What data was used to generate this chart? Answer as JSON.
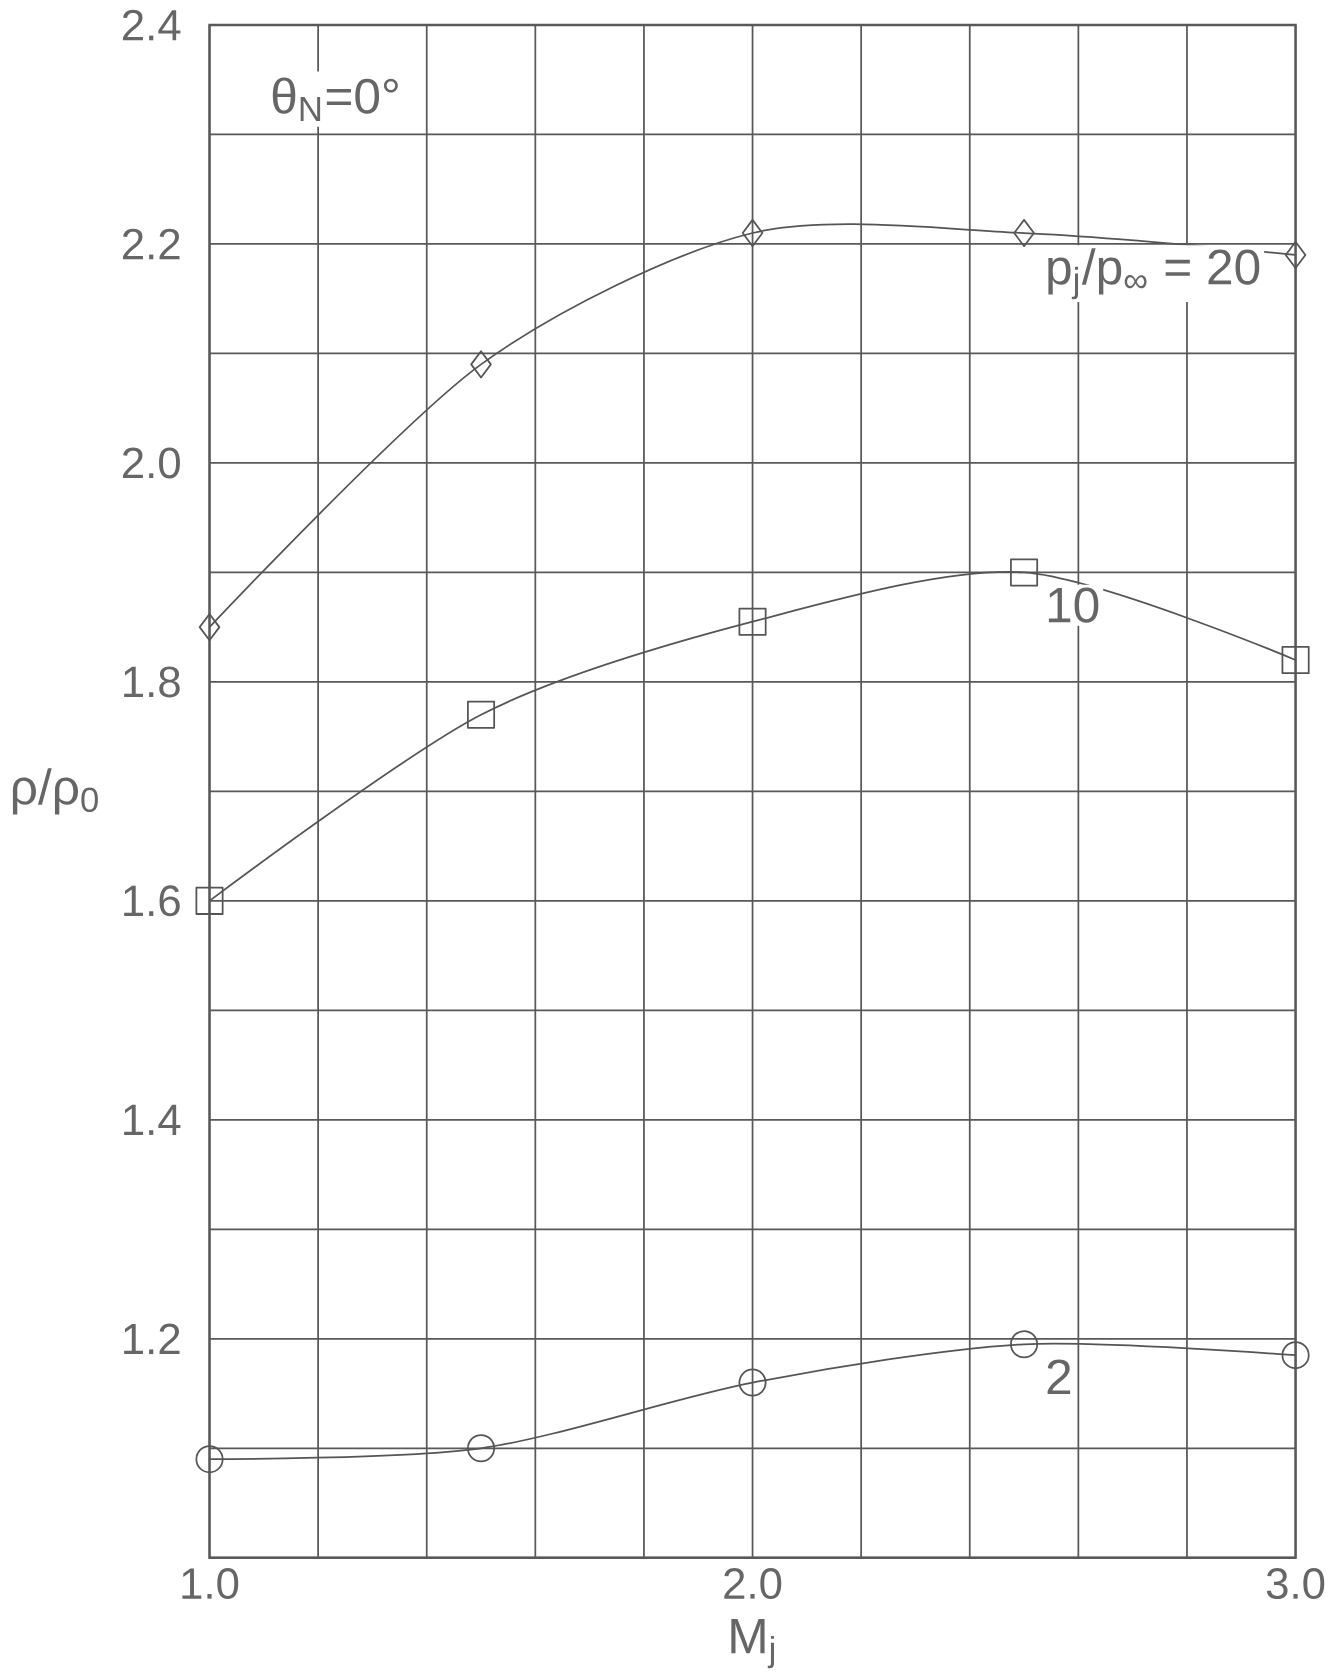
{
  "chart_data": {
    "type": "line",
    "xlabel": "M$_{j}$",
    "ylabel": "ρ/ρ$_{0}$",
    "annotations": [
      "θ$_{N}$=0°"
    ],
    "x": [
      1.0,
      1.5,
      2.0,
      2.5,
      3.0
    ],
    "series": [
      {
        "name": "p$_{j}$/p$_{∞}$ = 20",
        "color": "#555555",
        "marker": "diamond",
        "values": [
          1.85,
          2.09,
          2.21,
          2.21,
          2.19
        ]
      },
      {
        "name": "10",
        "color": "#555555",
        "marker": "square",
        "values": [
          1.6,
          1.77,
          1.855,
          1.9,
          1.82
        ]
      },
      {
        "name": "2",
        "color": "#555555",
        "marker": "circle",
        "values": [
          1.09,
          1.1,
          1.16,
          1.195,
          1.185
        ]
      }
    ],
    "xlim": [
      1.0,
      3.0
    ],
    "ylim": [
      1.0,
      2.4
    ],
    "xticks": [
      {
        "value": 1.0,
        "label": "1.0"
      },
      {
        "value": 1.2,
        "label": null
      },
      {
        "value": 1.4,
        "label": null
      },
      {
        "value": 1.6,
        "label": null
      },
      {
        "value": 1.8,
        "label": null
      },
      {
        "value": 2.0,
        "label": "2.0"
      },
      {
        "value": 2.2,
        "label": null
      },
      {
        "value": 2.4,
        "label": null
      },
      {
        "value": 2.6,
        "label": null
      },
      {
        "value": 2.8,
        "label": null
      },
      {
        "value": 3.0,
        "label": "3.0"
      }
    ],
    "yticks": [
      {
        "value": 1.0,
        "label": null
      },
      {
        "value": 1.1,
        "label": null
      },
      1.2,
      {
        "value": 1.3,
        "label": null
      },
      1.4,
      {
        "value": 1.5,
        "label": null
      },
      1.6,
      {
        "value": 1.7,
        "label": null
      },
      1.8,
      {
        "value": 1.9,
        "label": null
      },
      {
        "value": 2.0,
        "label": "2.0"
      },
      {
        "value": 2.1,
        "label": null
      },
      2.2,
      {
        "value": 2.3,
        "label": null
      },
      2.4
    ],
    "grid": true,
    "line_style": "solid"
  }
}
